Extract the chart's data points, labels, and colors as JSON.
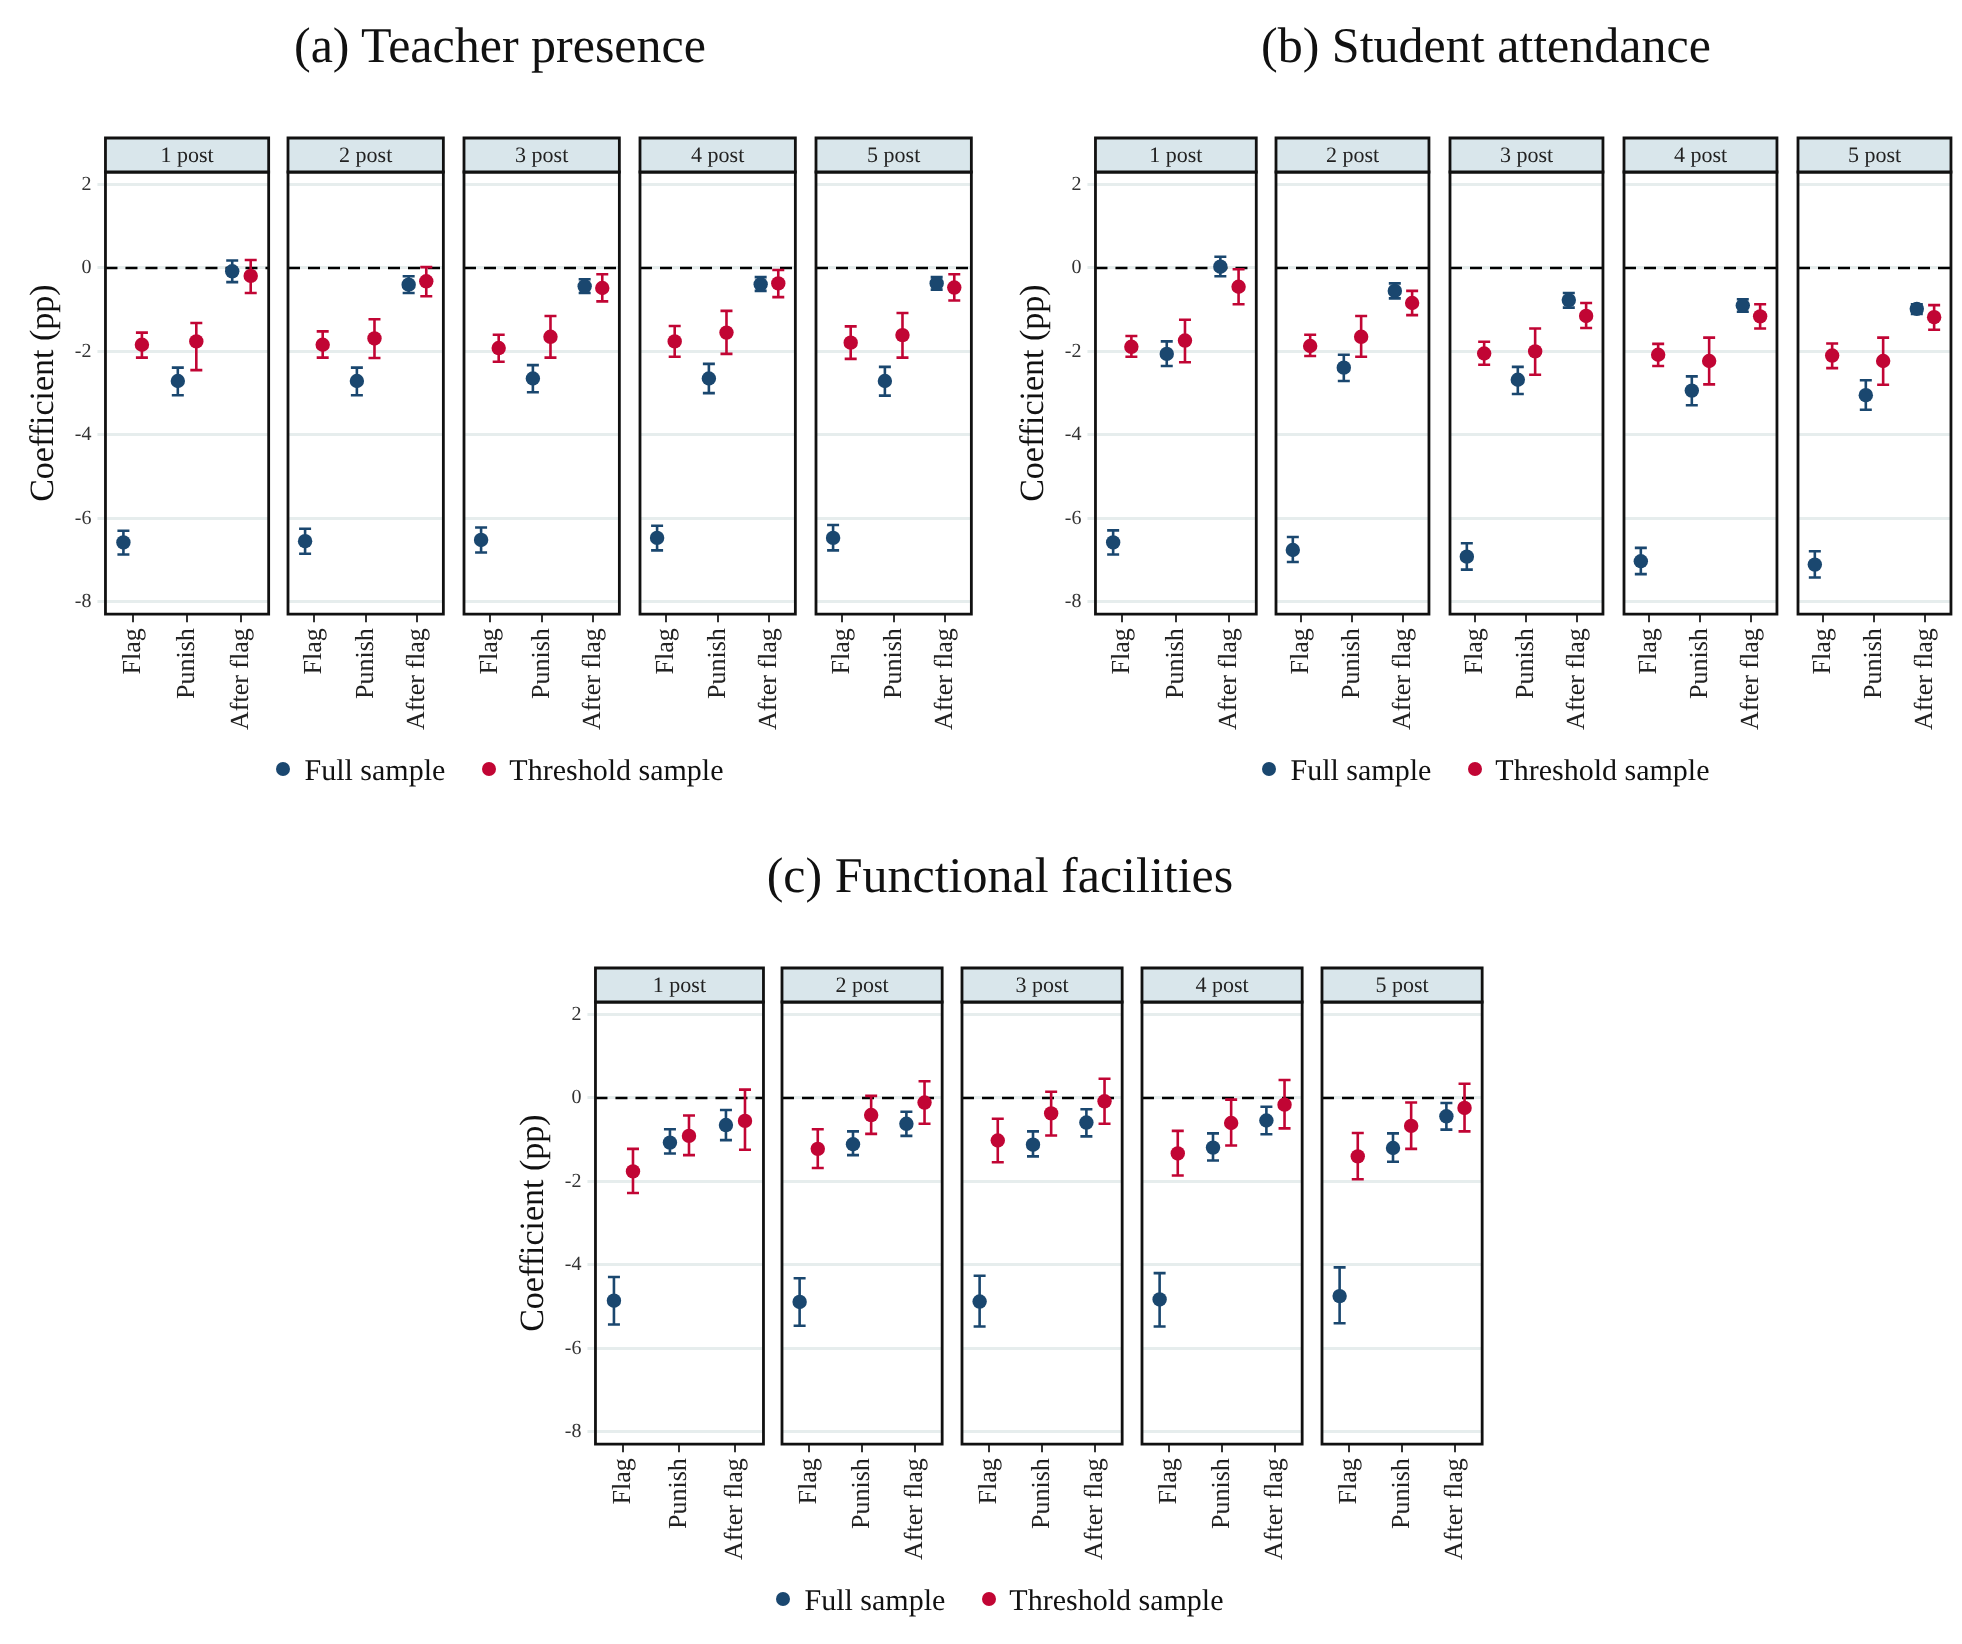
{
  "chart_data": [
    {
      "type": "scatter",
      "title": "1 post",
      "annotations": [
        "(a) Teacher presence"
      ],
      "ylabel": "Coefficient (pp)",
      "categories": [
        "Flag",
        "Punish",
        "After flag"
      ],
      "ylim": [
        -8.3,
        2.3
      ],
      "yticks": [
        -8,
        -6,
        -4,
        -2,
        0,
        2
      ],
      "grid": "y",
      "marker": "circle",
      "ref_lines": [
        {
          "axis": "y",
          "value": 0,
          "line_style": "dashed",
          "color": "#000000"
        }
      ],
      "series": [
        {
          "color": "#1a476f",
          "values": [
            -6.58,
            -2.71,
            -0.08
          ],
          "errors": [
            [
              -6.87,
              -6.3
            ],
            [
              -3.05,
              -2.39
            ],
            [
              -0.34,
              0.18
            ]
          ]
        },
        {
          "color": "#c10534",
          "values": [
            -1.84,
            -1.76,
            -0.19
          ],
          "errors": [
            [
              -2.15,
              -1.55
            ],
            [
              -2.45,
              -1.32
            ],
            [
              -0.6,
              0.19
            ]
          ]
        }
      ]
    },
    {
      "type": "scatter",
      "title": "2 post",
      "categories": [
        "Flag",
        "Punish",
        "After flag"
      ],
      "ylim": [
        -8.3,
        2.3
      ],
      "yticks": [
        -8,
        -6,
        -4,
        -2,
        0,
        2
      ],
      "tick_labels": "x",
      "grid": "y",
      "marker": "circle",
      "ref_lines": [
        {
          "axis": "y",
          "value": 0,
          "line_style": "dashed",
          "color": "#000000"
        }
      ],
      "series": [
        {
          "color": "#1a476f",
          "values": [
            -6.55,
            -2.71,
            -0.4
          ],
          "errors": [
            [
              -6.85,
              -6.25
            ],
            [
              -3.05,
              -2.39
            ],
            [
              -0.6,
              -0.2
            ]
          ]
        },
        {
          "color": "#c10534",
          "values": [
            -1.84,
            -1.69,
            -0.32
          ],
          "errors": [
            [
              -2.15,
              -1.52
            ],
            [
              -2.16,
              -1.23
            ],
            [
              -0.68,
              0.02
            ]
          ]
        }
      ]
    },
    {
      "type": "scatter",
      "title": "3 post",
      "categories": [
        "Flag",
        "Punish",
        "After flag"
      ],
      "ylim": [
        -8.3,
        2.3
      ],
      "yticks": [
        -8,
        -6,
        -4,
        -2,
        0,
        2
      ],
      "tick_labels": "x",
      "grid": "y",
      "marker": "circle",
      "legend": "bottom",
      "ref_lines": [
        {
          "axis": "y",
          "value": 0,
          "line_style": "dashed",
          "color": "#000000"
        }
      ],
      "series": [
        {
          "name": "Full sample",
          "color": "#1a476f",
          "values": [
            -6.52,
            -2.65,
            -0.44
          ],
          "errors": [
            [
              -6.82,
              -6.22
            ],
            [
              -2.98,
              -2.33
            ],
            [
              -0.6,
              -0.27
            ]
          ]
        },
        {
          "name": "Threshold sample",
          "color": "#c10534",
          "values": [
            -1.92,
            -1.65,
            -0.48
          ],
          "errors": [
            [
              -2.25,
              -1.6
            ],
            [
              -2.15,
              -1.15
            ],
            [
              -0.8,
              -0.15
            ]
          ]
        }
      ]
    },
    {
      "type": "scatter",
      "title": "4 post",
      "categories": [
        "Flag",
        "Punish",
        "After flag"
      ],
      "ylim": [
        -8.3,
        2.3
      ],
      "yticks": [
        -8,
        -6,
        -4,
        -2,
        0,
        2
      ],
      "tick_labels": "x",
      "grid": "y",
      "marker": "circle",
      "ref_lines": [
        {
          "axis": "y",
          "value": 0,
          "line_style": "dashed",
          "color": "#000000"
        }
      ],
      "series": [
        {
          "color": "#1a476f",
          "values": [
            -6.47,
            -2.65,
            -0.39
          ],
          "errors": [
            [
              -6.77,
              -6.18
            ],
            [
              -3.0,
              -2.3
            ],
            [
              -0.55,
              -0.22
            ]
          ]
        },
        {
          "color": "#c10534",
          "values": [
            -1.76,
            -1.55,
            -0.37
          ],
          "errors": [
            [
              -2.13,
              -1.39
            ],
            [
              -2.06,
              -1.03
            ],
            [
              -0.7,
              -0.05
            ]
          ]
        }
      ]
    },
    {
      "type": "scatter",
      "title": "5 post",
      "categories": [
        "Flag",
        "Punish",
        "After flag"
      ],
      "ylim": [
        -8.3,
        2.3
      ],
      "yticks": [
        -8,
        -6,
        -4,
        -2,
        0,
        2
      ],
      "tick_labels": "x",
      "grid": "y",
      "marker": "circle",
      "ref_lines": [
        {
          "axis": "y",
          "value": 0,
          "line_style": "dashed",
          "color": "#000000"
        }
      ],
      "series": [
        {
          "color": "#1a476f",
          "values": [
            -6.47,
            -2.71,
            -0.37
          ],
          "errors": [
            [
              -6.77,
              -6.16
            ],
            [
              -3.06,
              -2.37
            ],
            [
              -0.52,
              -0.22
            ]
          ]
        },
        {
          "color": "#c10534",
          "values": [
            -1.79,
            -1.61,
            -0.47
          ],
          "errors": [
            [
              -2.18,
              -1.4
            ],
            [
              -2.15,
              -1.08
            ],
            [
              -0.78,
              -0.15
            ]
          ]
        }
      ]
    },
    {
      "type": "scatter",
      "title": "1 post",
      "annotations": [
        "(b) Student attendance"
      ],
      "ylabel": "Coefficient (pp)",
      "categories": [
        "Flag",
        "Punish",
        "After flag"
      ],
      "ylim": [
        -8.3,
        2.3
      ],
      "yticks": [
        -8,
        -6,
        -4,
        -2,
        0,
        2
      ],
      "grid": "y",
      "marker": "circle",
      "ref_lines": [
        {
          "axis": "y",
          "value": 0,
          "line_style": "dashed",
          "color": "#000000"
        }
      ],
      "series": [
        {
          "color": "#1a476f",
          "values": [
            -6.58,
            -2.06,
            0.03
          ],
          "errors": [
            [
              -6.87,
              -6.29
            ],
            [
              -2.35,
              -1.76
            ],
            [
              -0.2,
              0.27
            ]
          ]
        },
        {
          "color": "#c10534",
          "values": [
            -1.89,
            -1.74,
            -0.45
          ],
          "errors": [
            [
              -2.13,
              -1.63
            ],
            [
              -2.26,
              -1.24
            ],
            [
              -0.87,
              -0.03
            ]
          ]
        }
      ]
    },
    {
      "type": "scatter",
      "title": "2 post",
      "categories": [
        "Flag",
        "Punish",
        "After flag"
      ],
      "ylim": [
        -8.3,
        2.3
      ],
      "yticks": [
        -8,
        -6,
        -4,
        -2,
        0,
        2
      ],
      "tick_labels": "x",
      "grid": "y",
      "marker": "circle",
      "ref_lines": [
        {
          "axis": "y",
          "value": 0,
          "line_style": "dashed",
          "color": "#000000"
        }
      ],
      "series": [
        {
          "color": "#1a476f",
          "values": [
            -6.76,
            -2.39,
            -0.55
          ],
          "errors": [
            [
              -7.05,
              -6.45
            ],
            [
              -2.71,
              -2.08
            ],
            [
              -0.73,
              -0.37
            ]
          ]
        },
        {
          "color": "#c10534",
          "values": [
            -1.87,
            -1.65,
            -0.84
          ],
          "errors": [
            [
              -2.11,
              -1.6
            ],
            [
              -2.13,
              -1.15
            ],
            [
              -1.13,
              -0.55
            ]
          ]
        }
      ]
    },
    {
      "type": "scatter",
      "title": "3 post",
      "categories": [
        "Flag",
        "Punish",
        "After flag"
      ],
      "ylim": [
        -8.3,
        2.3
      ],
      "yticks": [
        -8,
        -6,
        -4,
        -2,
        0,
        2
      ],
      "tick_labels": "x",
      "grid": "y",
      "marker": "circle",
      "legend": "bottom",
      "ref_lines": [
        {
          "axis": "y",
          "value": 0,
          "line_style": "dashed",
          "color": "#000000"
        }
      ],
      "series": [
        {
          "name": "Full sample",
          "color": "#1a476f",
          "values": [
            -6.92,
            -2.68,
            -0.77
          ],
          "errors": [
            [
              -7.23,
              -6.6
            ],
            [
              -3.02,
              -2.37
            ],
            [
              -0.95,
              -0.6
            ]
          ]
        },
        {
          "name": "Threshold sample",
          "color": "#c10534",
          "values": [
            -2.05,
            -2.0,
            -1.15
          ],
          "errors": [
            [
              -2.32,
              -1.77
            ],
            [
              -2.56,
              -1.45
            ],
            [
              -1.44,
              -0.84
            ]
          ]
        }
      ]
    },
    {
      "type": "scatter",
      "title": "4 post",
      "categories": [
        "Flag",
        "Punish",
        "After flag"
      ],
      "ylim": [
        -8.3,
        2.3
      ],
      "yticks": [
        -8,
        -6,
        -4,
        -2,
        0,
        2
      ],
      "tick_labels": "x",
      "grid": "y",
      "marker": "circle",
      "ref_lines": [
        {
          "axis": "y",
          "value": 0,
          "line_style": "dashed",
          "color": "#000000"
        }
      ],
      "series": [
        {
          "color": "#1a476f",
          "values": [
            -7.03,
            -2.94,
            -0.9
          ],
          "errors": [
            [
              -7.34,
              -6.71
            ],
            [
              -3.29,
              -2.6
            ],
            [
              -1.05,
              -0.75
            ]
          ]
        },
        {
          "color": "#c10534",
          "values": [
            -2.08,
            -2.23,
            -1.16
          ],
          "errors": [
            [
              -2.35,
              -1.82
            ],
            [
              -2.79,
              -1.67
            ],
            [
              -1.45,
              -0.87
            ]
          ]
        }
      ]
    },
    {
      "type": "scatter",
      "title": "5 post",
      "categories": [
        "Flag",
        "Punish",
        "After flag"
      ],
      "ylim": [
        -8.3,
        2.3
      ],
      "yticks": [
        -8,
        -6,
        -4,
        -2,
        0,
        2
      ],
      "tick_labels": "x",
      "grid": "y",
      "marker": "circle",
      "ref_lines": [
        {
          "axis": "y",
          "value": 0,
          "line_style": "dashed",
          "color": "#000000"
        }
      ],
      "series": [
        {
          "color": "#1a476f",
          "values": [
            -7.11,
            -3.05,
            -0.98
          ],
          "errors": [
            [
              -7.42,
              -6.79
            ],
            [
              -3.4,
              -2.69
            ],
            [
              -1.1,
              -0.87
            ]
          ]
        },
        {
          "color": "#c10534",
          "values": [
            -2.1,
            -2.23,
            -1.18
          ],
          "errors": [
            [
              -2.4,
              -1.81
            ],
            [
              -2.8,
              -1.67
            ],
            [
              -1.48,
              -0.89
            ]
          ]
        }
      ]
    },
    {
      "type": "scatter",
      "title": "1 post",
      "annotations": [
        "(c) Functional facilities"
      ],
      "ylabel": "Coefficient (pp)",
      "categories": [
        "Flag",
        "Punish",
        "After flag"
      ],
      "ylim": [
        -8.3,
        2.3
      ],
      "yticks": [
        -8,
        -6,
        -4,
        -2,
        0,
        2
      ],
      "grid": "y",
      "marker": "circle",
      "ref_lines": [
        {
          "axis": "y",
          "value": 0,
          "line_style": "dashed",
          "color": "#000000"
        }
      ],
      "series": [
        {
          "color": "#1a476f",
          "values": [
            -4.86,
            -1.07,
            -0.65
          ],
          "errors": [
            [
              -5.43,
              -4.29
            ],
            [
              -1.33,
              -0.75
            ],
            [
              -1.01,
              -0.29
            ]
          ]
        },
        {
          "color": "#c10534",
          "values": [
            -1.76,
            -0.91,
            -0.55
          ],
          "errors": [
            [
              -2.28,
              -1.22
            ],
            [
              -1.37,
              -0.42
            ],
            [
              -1.24,
              0.2
            ]
          ]
        }
      ]
    },
    {
      "type": "scatter",
      "title": "2 post",
      "categories": [
        "Flag",
        "Punish",
        "After flag"
      ],
      "ylim": [
        -8.3,
        2.3
      ],
      "yticks": [
        -8,
        -6,
        -4,
        -2,
        0,
        2
      ],
      "tick_labels": "x",
      "grid": "y",
      "marker": "circle",
      "ref_lines": [
        {
          "axis": "y",
          "value": 0,
          "line_style": "dashed",
          "color": "#000000"
        }
      ],
      "series": [
        {
          "color": "#1a476f",
          "values": [
            -4.89,
            -1.11,
            -0.62
          ],
          "errors": [
            [
              -5.46,
              -4.32
            ],
            [
              -1.37,
              -0.8
            ],
            [
              -0.91,
              -0.33
            ]
          ]
        },
        {
          "color": "#c10534",
          "values": [
            -1.22,
            -0.41,
            -0.11
          ],
          "errors": [
            [
              -1.68,
              -0.75
            ],
            [
              -0.86,
              0.05
            ],
            [
              -0.62,
              0.4
            ]
          ]
        }
      ]
    },
    {
      "type": "scatter",
      "title": "3 post",
      "categories": [
        "Flag",
        "Punish",
        "After flag"
      ],
      "ylim": [
        -8.3,
        2.3
      ],
      "yticks": [
        -8,
        -6,
        -4,
        -2,
        0,
        2
      ],
      "tick_labels": "x",
      "grid": "y",
      "marker": "circle",
      "legend": "bottom",
      "ref_lines": [
        {
          "axis": "y",
          "value": 0,
          "line_style": "dashed",
          "color": "#000000"
        }
      ],
      "series": [
        {
          "name": "Full sample",
          "color": "#1a476f",
          "values": [
            -4.88,
            -1.12,
            -0.59
          ],
          "errors": [
            [
              -5.48,
              -4.26
            ],
            [
              -1.4,
              -0.8
            ],
            [
              -0.92,
              -0.27
            ]
          ]
        },
        {
          "name": "Threshold sample",
          "color": "#c10534",
          "values": [
            -1.02,
            -0.37,
            -0.08
          ],
          "errors": [
            [
              -1.54,
              -0.5
            ],
            [
              -0.9,
              0.15
            ],
            [
              -0.62,
              0.46
            ]
          ]
        }
      ]
    },
    {
      "type": "scatter",
      "title": "4 post",
      "categories": [
        "Flag",
        "Punish",
        "After flag"
      ],
      "ylim": [
        -8.3,
        2.3
      ],
      "yticks": [
        -8,
        -6,
        -4,
        -2,
        0,
        2
      ],
      "tick_labels": "x",
      "grid": "y",
      "marker": "circle",
      "ref_lines": [
        {
          "axis": "y",
          "value": 0,
          "line_style": "dashed",
          "color": "#000000"
        }
      ],
      "series": [
        {
          "color": "#1a476f",
          "values": [
            -4.83,
            -1.19,
            -0.54
          ],
          "errors": [
            [
              -5.48,
              -4.2
            ],
            [
              -1.5,
              -0.85
            ],
            [
              -0.87,
              -0.21
            ]
          ]
        },
        {
          "color": "#c10534",
          "values": [
            -1.33,
            -0.6,
            -0.16
          ],
          "errors": [
            [
              -1.86,
              -0.79
            ],
            [
              -1.14,
              -0.04
            ],
            [
              -0.73,
              0.43
            ]
          ]
        }
      ]
    },
    {
      "type": "scatter",
      "title": "5 post",
      "categories": [
        "Flag",
        "Punish",
        "After flag"
      ],
      "ylim": [
        -8.3,
        2.3
      ],
      "yticks": [
        -8,
        -6,
        -4,
        -2,
        0,
        2
      ],
      "tick_labels": "x",
      "grid": "y",
      "marker": "circle",
      "ref_lines": [
        {
          "axis": "y",
          "value": 0,
          "line_style": "dashed",
          "color": "#000000"
        }
      ],
      "series": [
        {
          "color": "#1a476f",
          "values": [
            -4.75,
            -1.2,
            -0.44
          ],
          "errors": [
            [
              -5.4,
              -4.06
            ],
            [
              -1.53,
              -0.85
            ],
            [
              -0.76,
              -0.12
            ]
          ]
        },
        {
          "color": "#c10534",
          "values": [
            -1.4,
            -0.67,
            -0.24
          ],
          "errors": [
            [
              -1.95,
              -0.84
            ],
            [
              -1.22,
              -0.11
            ],
            [
              -0.8,
              0.34
            ]
          ]
        }
      ]
    }
  ]
}
